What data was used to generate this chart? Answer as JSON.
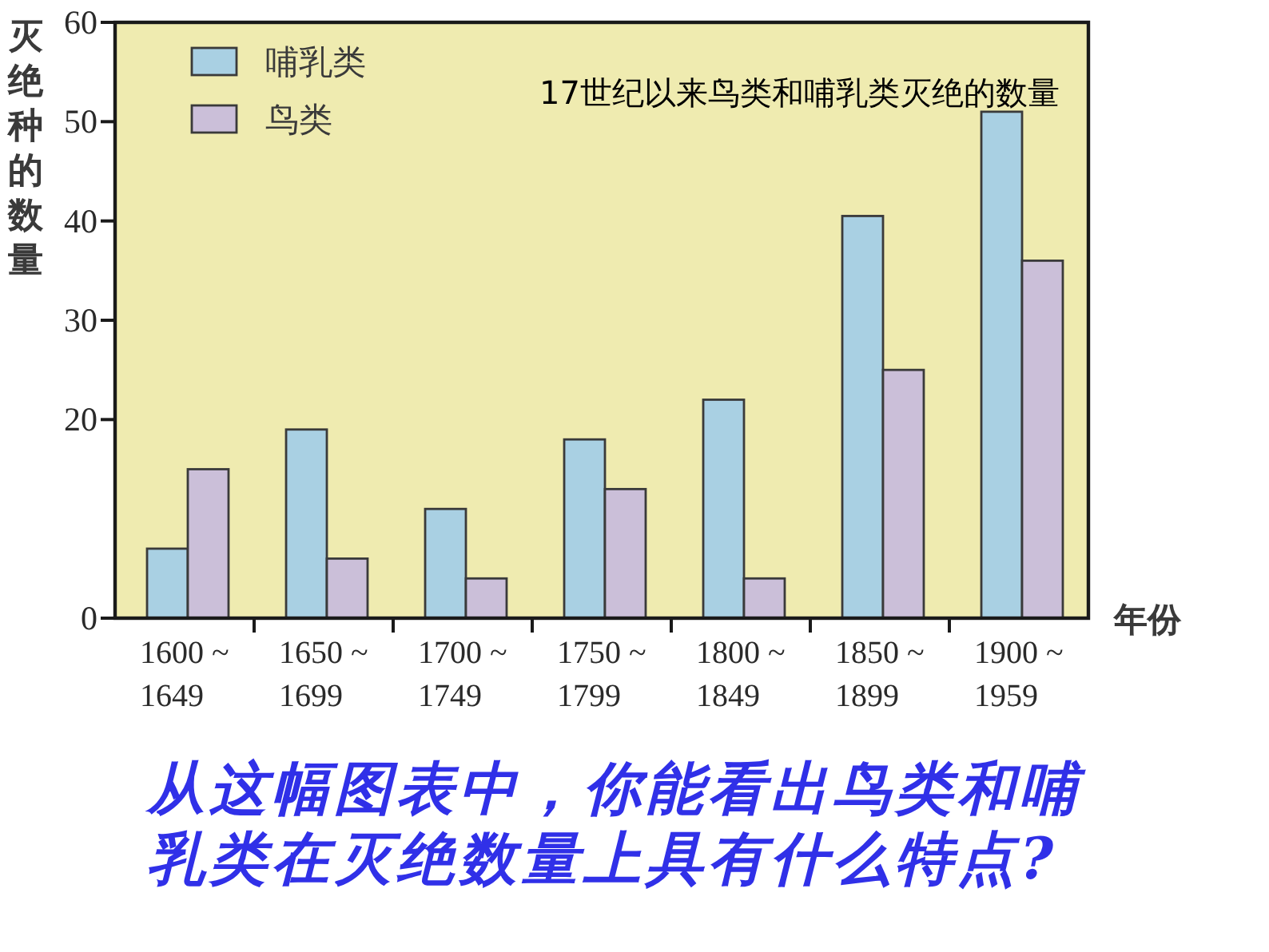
{
  "chart_data": {
    "type": "bar",
    "title": "17世纪以来鸟类和哺乳类灭绝的数量",
    "xlabel": "年份",
    "ylabel": "灭绝种的数量",
    "categories": [
      "1600 ~\n1649",
      "1650 ~\n1699",
      "1700 ~\n1749",
      "1750 ~\n1799",
      "1800 ~\n1849",
      "1850 ~\n1899",
      "1900 ~\n1959"
    ],
    "series": [
      {
        "name": "哺乳类",
        "color": "#a9d0e3",
        "values": [
          7,
          19,
          11,
          18,
          22,
          40.5,
          51
        ]
      },
      {
        "name": "鸟类",
        "color": "#cbbfd9",
        "values": [
          15,
          6,
          4,
          13,
          4,
          25,
          36
        ]
      }
    ],
    "ylim": [
      0,
      60
    ],
    "yticks": [
      0,
      20,
      30,
      40,
      50,
      60
    ],
    "legend": "top left",
    "annotations": [
      "从这幅图表中，你能看出鸟类和哺乳类在灭绝数量上具有什么特点?"
    ]
  }
}
